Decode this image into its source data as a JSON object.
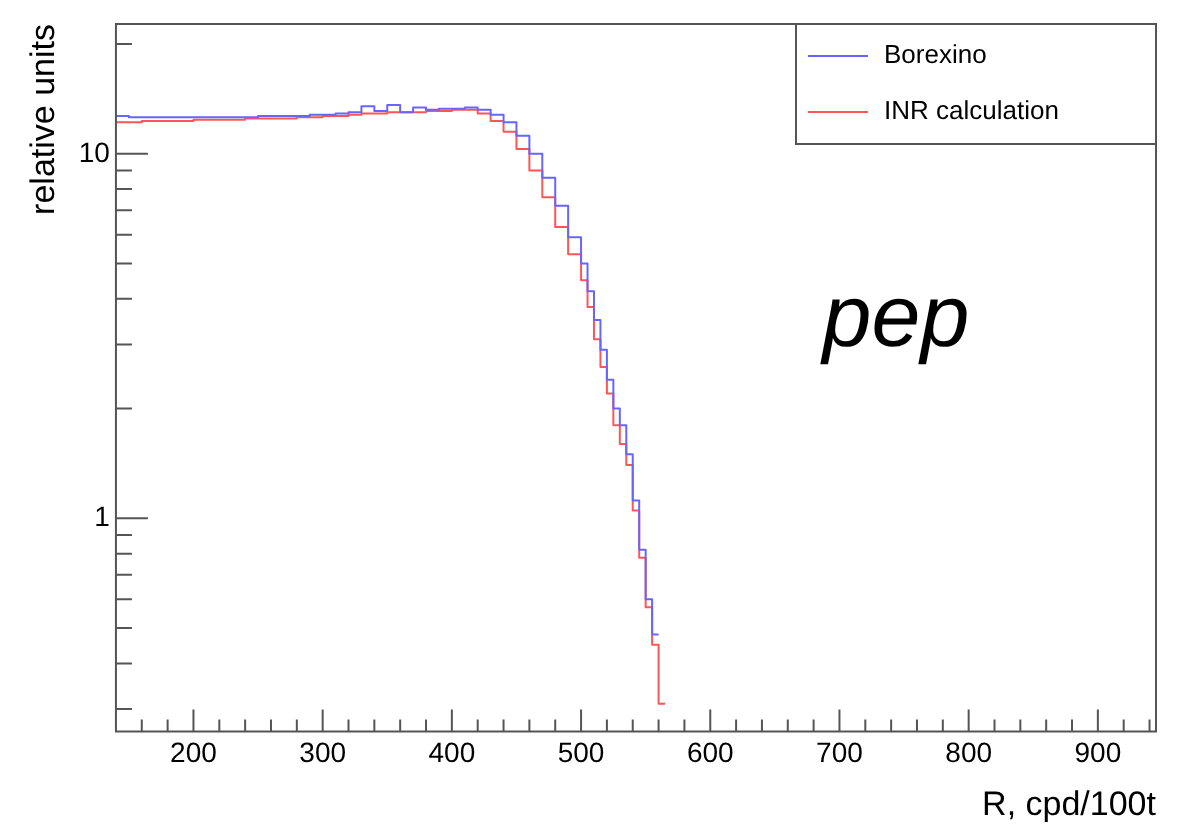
{
  "chart_data": {
    "type": "step",
    "xlabel": "R, cpd/100t",
    "ylabel": "relative units",
    "annotations": [
      "pep"
    ],
    "x": [
      140,
      150,
      160,
      170,
      180,
      190,
      200,
      210,
      220,
      230,
      240,
      250,
      260,
      270,
      280,
      290,
      300,
      310,
      320,
      330,
      340,
      350,
      360,
      370,
      380,
      390,
      400,
      410,
      420,
      430,
      440,
      450,
      460,
      470,
      480,
      490,
      500,
      505,
      510,
      515,
      520,
      525,
      530,
      535,
      540,
      545,
      550,
      555,
      560,
      565
    ],
    "series": [
      {
        "name": "Borexino",
        "color": "#6666ff",
        "values": [
          12.8,
          12.7,
          12.6,
          12.6,
          12.6,
          12.6,
          12.6,
          12.6,
          12.6,
          12.6,
          12.6,
          12.6,
          12.7,
          12.7,
          12.7,
          12.7,
          12.8,
          12.8,
          12.9,
          13.0,
          13.5,
          13.1,
          13.6,
          13.0,
          13.4,
          13.2,
          13.3,
          13.3,
          13.4,
          13.2,
          12.8,
          12.2,
          11.2,
          10.0,
          8.6,
          7.2,
          5.9,
          5.0,
          4.2,
          3.5,
          2.9,
          2.4,
          2.0,
          1.8,
          1.5,
          1.12,
          0.82,
          0.6,
          0.48,
          null
        ]
      },
      {
        "name": "INR calculation",
        "color": "#ff5555",
        "values": [
          12.2,
          12.2,
          12.2,
          12.3,
          12.3,
          12.3,
          12.3,
          12.4,
          12.4,
          12.4,
          12.4,
          12.5,
          12.5,
          12.5,
          12.5,
          12.6,
          12.6,
          12.7,
          12.7,
          12.8,
          12.9,
          12.9,
          13.0,
          13.0,
          13.0,
          13.1,
          13.1,
          13.2,
          13.2,
          12.9,
          12.3,
          11.5,
          10.3,
          9.0,
          7.6,
          6.3,
          5.3,
          4.5,
          3.8,
          3.1,
          2.6,
          2.2,
          1.8,
          1.6,
          1.4,
          1.05,
          0.78,
          0.57,
          0.45,
          0.31
        ]
      }
    ],
    "log": "y",
    "xlim": [
      140,
      945
    ],
    "ylim": [
      0.26,
      22.7
    ],
    "xticks": [
      {
        "value": 160,
        "label": null
      },
      {
        "value": 180,
        "label": null
      },
      200,
      {
        "value": 220,
        "label": null
      },
      {
        "value": 240,
        "label": null
      },
      {
        "value": 260,
        "label": null
      },
      {
        "value": 280,
        "label": null
      },
      300,
      {
        "value": 320,
        "label": null
      },
      {
        "value": 340,
        "label": null
      },
      {
        "value": 360,
        "label": null
      },
      {
        "value": 380,
        "label": null
      },
      400,
      {
        "value": 420,
        "label": null
      },
      {
        "value": 440,
        "label": null
      },
      {
        "value": 460,
        "label": null
      },
      {
        "value": 480,
        "label": null
      },
      500,
      {
        "value": 520,
        "label": null
      },
      {
        "value": 540,
        "label": null
      },
      {
        "value": 560,
        "label": null
      },
      {
        "value": 580,
        "label": null
      },
      600,
      {
        "value": 620,
        "label": null
      },
      {
        "value": 640,
        "label": null
      },
      {
        "value": 660,
        "label": null
      },
      {
        "value": 680,
        "label": null
      },
      700,
      {
        "value": 720,
        "label": null
      },
      {
        "value": 740,
        "label": null
      },
      {
        "value": 760,
        "label": null
      },
      {
        "value": 780,
        "label": null
      },
      800,
      {
        "value": 820,
        "label": null
      },
      {
        "value": 840,
        "label": null
      },
      {
        "value": 860,
        "label": null
      },
      {
        "value": 880,
        "label": null
      },
      900,
      {
        "value": 920,
        "label": null
      },
      {
        "value": 940,
        "label": null
      }
    ],
    "yticks": [
      {
        "value": 0.3,
        "label": null
      },
      {
        "value": 0.4,
        "label": null
      },
      {
        "value": 0.5,
        "label": null
      },
      {
        "value": 0.6,
        "label": null
      },
      {
        "value": 0.7,
        "label": null
      },
      {
        "value": 0.8,
        "label": null
      },
      {
        "value": 0.9,
        "label": null
      },
      1,
      {
        "value": 2,
        "label": null
      },
      {
        "value": 3,
        "label": null
      },
      {
        "value": 4,
        "label": null
      },
      {
        "value": 5,
        "label": null
      },
      {
        "value": 6,
        "label": null
      },
      {
        "value": 7,
        "label": null
      },
      {
        "value": 8,
        "label": null
      },
      {
        "value": 9,
        "label": null
      },
      10,
      {
        "value": 20,
        "label": null
      }
    ],
    "grid": false,
    "legend": "top right"
  }
}
